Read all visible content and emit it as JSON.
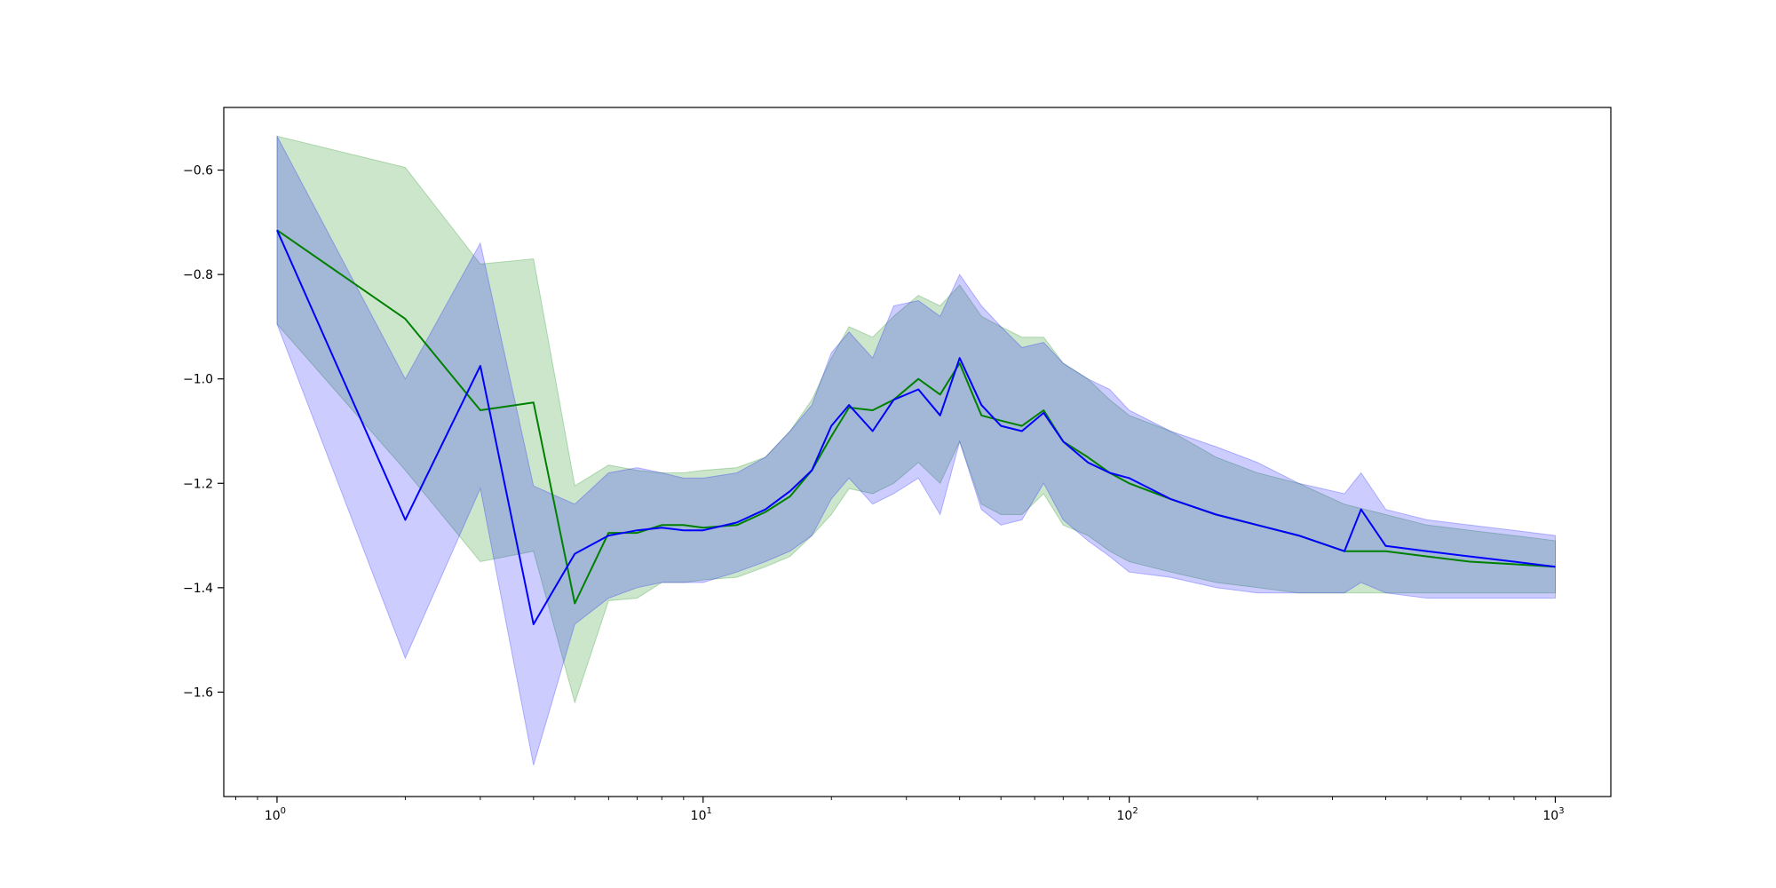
{
  "chart_data": {
    "type": "line",
    "title": "",
    "xlabel": "",
    "ylabel": "",
    "x_scale": "log",
    "xlim": [
      0.75,
      1350
    ],
    "ylim": [
      -1.8,
      -0.48
    ],
    "grid": false,
    "legend": "none",
    "x_ticks": [
      {
        "value": 1,
        "base": "10",
        "exp": "0"
      },
      {
        "value": 10,
        "base": "10",
        "exp": "1"
      },
      {
        "value": 100,
        "base": "10",
        "exp": "2"
      },
      {
        "value": 1000,
        "base": "10",
        "exp": "3"
      }
    ],
    "y_ticks": [
      {
        "value": -0.6,
        "label": "−0.6"
      },
      {
        "value": -0.8,
        "label": "−0.8"
      },
      {
        "value": -1.0,
        "label": "−1.0"
      },
      {
        "value": -1.2,
        "label": "−1.2"
      },
      {
        "value": -1.4,
        "label": "−1.4"
      },
      {
        "value": -1.6,
        "label": "−1.6"
      }
    ],
    "series": [
      {
        "color": "#008000",
        "band_color": "#008000",
        "x": [
          1,
          2,
          3,
          4,
          5,
          6,
          7,
          8,
          9,
          10,
          12,
          14,
          16,
          18,
          20,
          22,
          25,
          28,
          32,
          36,
          40,
          45,
          50,
          56,
          63,
          70,
          80,
          90,
          100,
          125,
          160,
          200,
          250,
          320,
          400,
          500,
          630,
          800,
          1000
        ],
        "y": [
          -0.715,
          -0.885,
          -1.06,
          -1.045,
          -1.43,
          -1.295,
          -1.295,
          -1.28,
          -1.28,
          -1.285,
          -1.28,
          -1.255,
          -1.225,
          -1.175,
          -1.11,
          -1.055,
          -1.06,
          -1.04,
          -1.0,
          -1.03,
          -0.97,
          -1.07,
          -1.08,
          -1.09,
          -1.06,
          -1.12,
          -1.15,
          -1.18,
          -1.2,
          -1.23,
          -1.26,
          -1.28,
          -1.3,
          -1.33,
          -1.33,
          -1.34,
          -1.35,
          -1.355,
          -1.36
        ],
        "upper": [
          -0.535,
          -0.595,
          -0.78,
          -0.77,
          -1.205,
          -1.165,
          -1.175,
          -1.18,
          -1.18,
          -1.175,
          -1.17,
          -1.15,
          -1.1,
          -1.04,
          -0.96,
          -0.9,
          -0.92,
          -0.88,
          -0.84,
          -0.86,
          -0.82,
          -0.88,
          -0.9,
          -0.92,
          -0.92,
          -0.97,
          -1.0,
          -1.04,
          -1.07,
          -1.1,
          -1.15,
          -1.18,
          -1.2,
          -1.24,
          -1.26,
          -1.28,
          -1.29,
          -1.3,
          -1.31
        ],
        "lower": [
          -0.895,
          -1.175,
          -1.35,
          -1.33,
          -1.62,
          -1.425,
          -1.42,
          -1.39,
          -1.39,
          -1.385,
          -1.38,
          -1.36,
          -1.34,
          -1.3,
          -1.26,
          -1.21,
          -1.22,
          -1.2,
          -1.16,
          -1.2,
          -1.12,
          -1.24,
          -1.26,
          -1.26,
          -1.22,
          -1.28,
          -1.3,
          -1.33,
          -1.35,
          -1.37,
          -1.39,
          -1.4,
          -1.41,
          -1.41,
          -1.41,
          -1.41,
          -1.41,
          -1.41,
          -1.41
        ]
      },
      {
        "color": "#0000ff",
        "band_color": "#0000ff",
        "x": [
          1,
          2,
          3,
          4,
          5,
          6,
          7,
          8,
          9,
          10,
          12,
          14,
          16,
          18,
          20,
          22,
          25,
          28,
          32,
          36,
          40,
          45,
          50,
          56,
          63,
          70,
          80,
          90,
          100,
          125,
          160,
          200,
          250,
          320,
          350,
          400,
          500,
          630,
          800,
          1000
        ],
        "y": [
          -0.715,
          -1.27,
          -0.975,
          -1.47,
          -1.335,
          -1.3,
          -1.29,
          -1.285,
          -1.29,
          -1.29,
          -1.275,
          -1.25,
          -1.215,
          -1.175,
          -1.09,
          -1.05,
          -1.1,
          -1.04,
          -1.02,
          -1.07,
          -0.96,
          -1.05,
          -1.09,
          -1.1,
          -1.065,
          -1.12,
          -1.16,
          -1.18,
          -1.19,
          -1.23,
          -1.26,
          -1.28,
          -1.3,
          -1.33,
          -1.25,
          -1.32,
          -1.33,
          -1.34,
          -1.35,
          -1.36
        ],
        "upper": [
          -0.535,
          -1.0,
          -0.74,
          -1.205,
          -1.24,
          -1.18,
          -1.17,
          -1.18,
          -1.19,
          -1.19,
          -1.18,
          -1.15,
          -1.1,
          -1.05,
          -0.95,
          -0.91,
          -0.96,
          -0.86,
          -0.85,
          -0.88,
          -0.8,
          -0.86,
          -0.9,
          -0.94,
          -0.93,
          -0.97,
          -1.0,
          -1.02,
          -1.06,
          -1.1,
          -1.13,
          -1.16,
          -1.2,
          -1.22,
          -1.18,
          -1.25,
          -1.27,
          -1.28,
          -1.29,
          -1.3
        ],
        "lower": [
          -0.895,
          -1.535,
          -1.21,
          -1.74,
          -1.47,
          -1.42,
          -1.4,
          -1.39,
          -1.39,
          -1.39,
          -1.37,
          -1.35,
          -1.33,
          -1.3,
          -1.23,
          -1.19,
          -1.24,
          -1.22,
          -1.19,
          -1.26,
          -1.12,
          -1.25,
          -1.28,
          -1.27,
          -1.2,
          -1.27,
          -1.31,
          -1.34,
          -1.37,
          -1.38,
          -1.4,
          -1.41,
          -1.41,
          -1.41,
          -1.39,
          -1.41,
          -1.42,
          -1.42,
          -1.42,
          -1.42
        ]
      }
    ]
  }
}
